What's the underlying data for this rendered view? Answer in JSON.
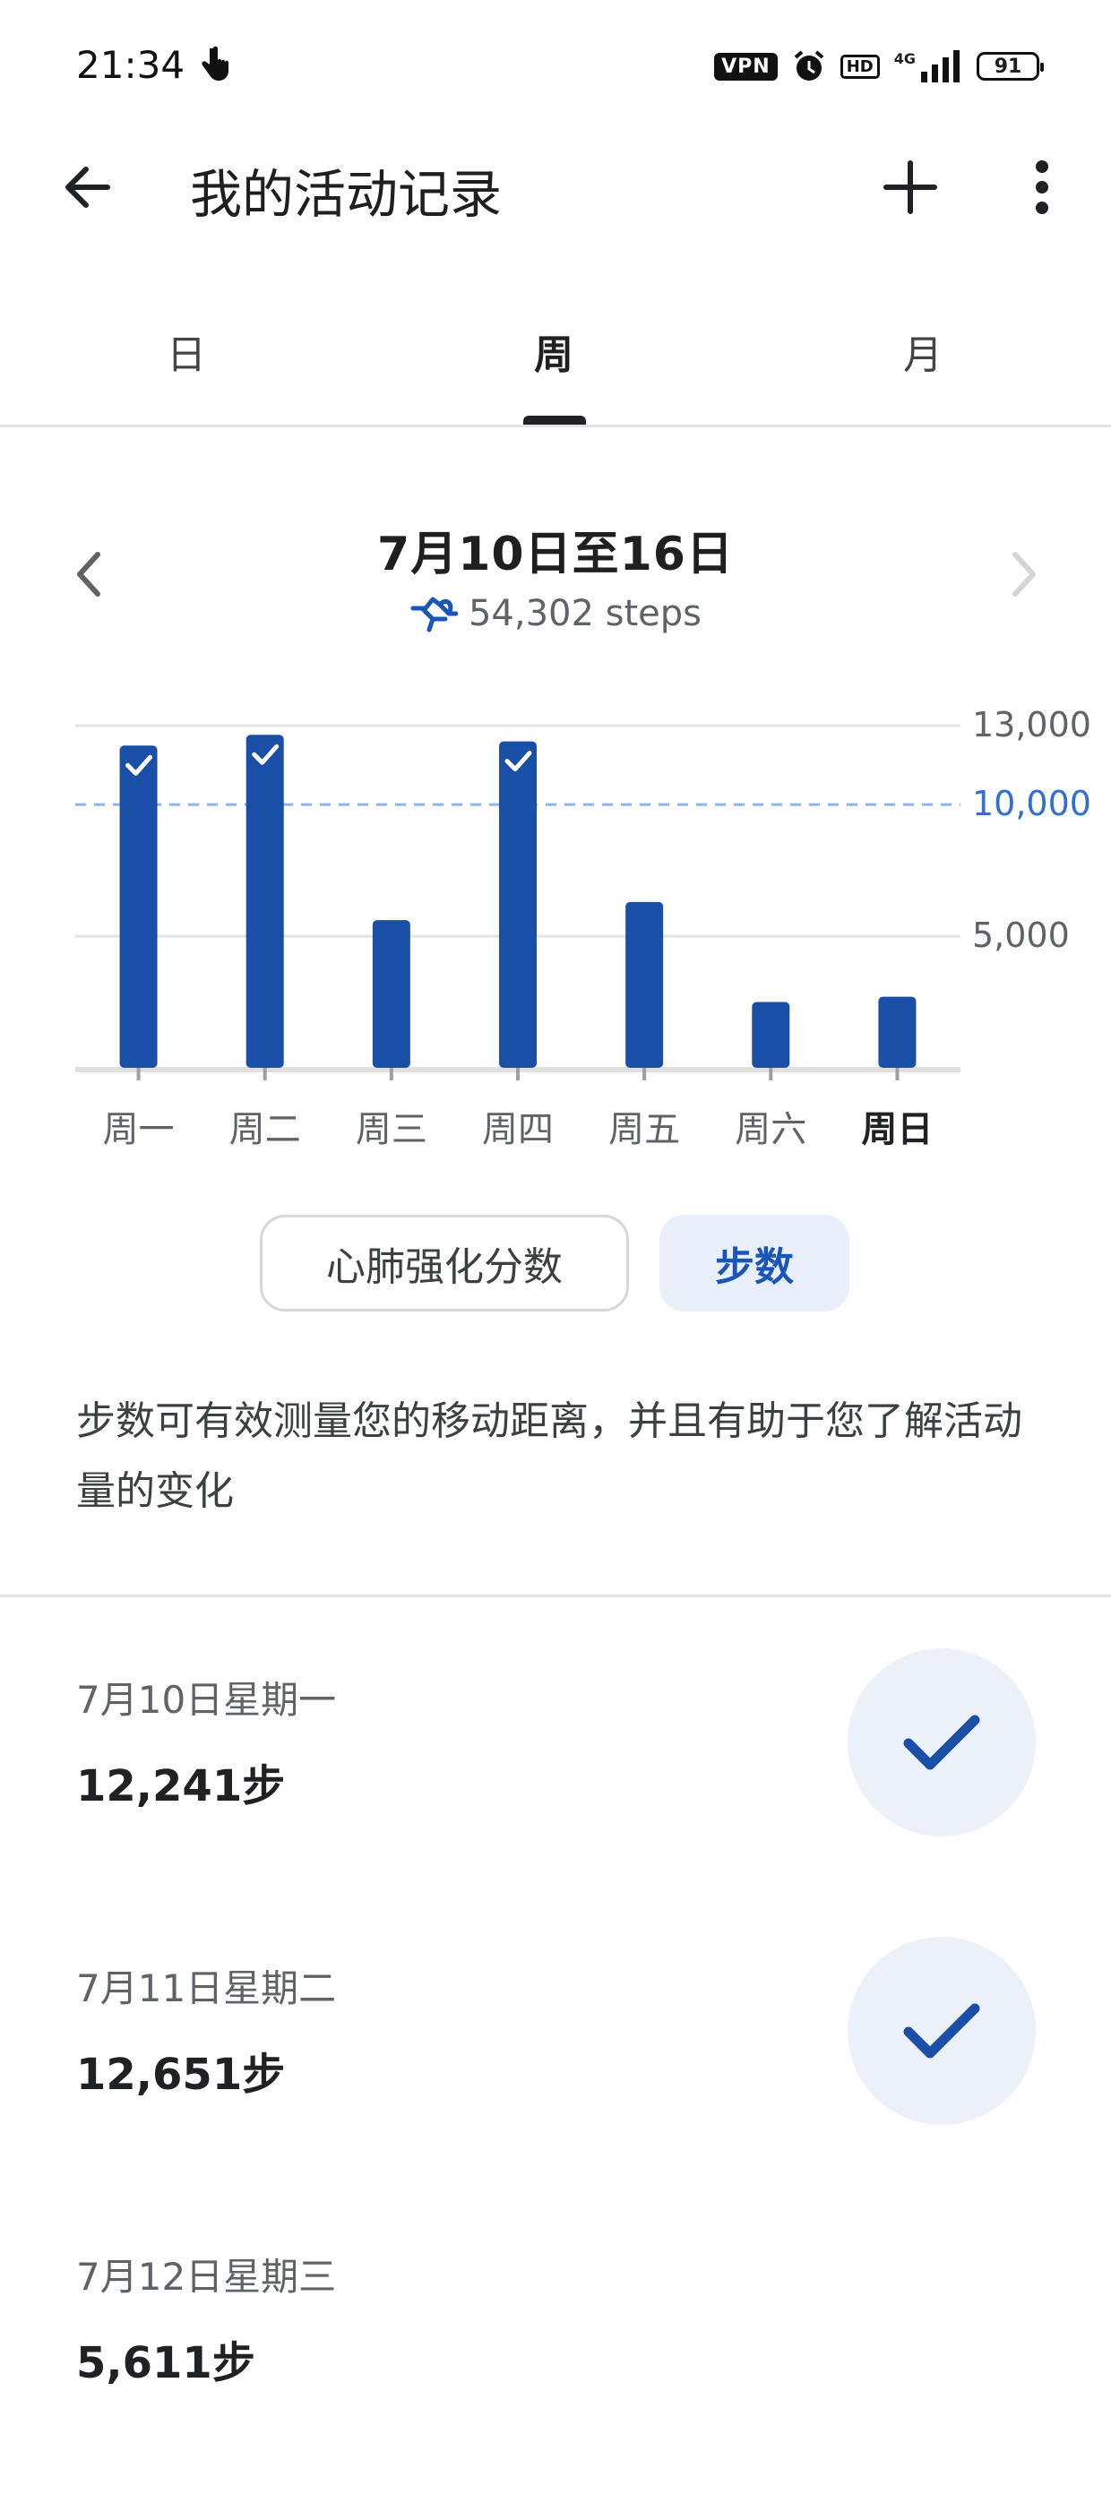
{
  "status_bar": {
    "time": "21:34",
    "vpn": "VPN",
    "hd": "HD",
    "network": "4G",
    "battery": "91"
  },
  "app_bar": {
    "title": "我的活动记录"
  },
  "tabs": [
    {
      "label": "日",
      "active": false
    },
    {
      "label": "周",
      "active": true
    },
    {
      "label": "月",
      "active": false
    }
  ],
  "summary": {
    "range": "7月10日至16日",
    "total": "54,302 steps"
  },
  "chart_data": {
    "type": "bar",
    "categories": [
      "周一",
      "周二",
      "周三",
      "周四",
      "周五",
      "周六",
      "周日"
    ],
    "values": [
      12241,
      12651,
      5611,
      12400,
      6300,
      2500,
      2700
    ],
    "goal_met": [
      true,
      true,
      false,
      true,
      false,
      false,
      false
    ],
    "current_index": 6,
    "y_ticks": [
      "13,000",
      "5,000"
    ],
    "y_tick_values": [
      13000,
      5000
    ],
    "goal_label": "10,000",
    "goal_value": 10000,
    "ylim": [
      0,
      13000
    ],
    "colors": {
      "bar": "#1a4fa8",
      "goal": "#2f6fd6",
      "grid": "#e3e3e3"
    }
  },
  "metric_chips": {
    "cardio": "心肺强化分数",
    "steps": "步数"
  },
  "description": "步数可有效测量您的移动距离，并且有助于您了解活动量的变化",
  "days": [
    {
      "date": "7月10日星期一",
      "steps": "12,241步",
      "goal_met": true
    },
    {
      "date": "7月11日星期二",
      "steps": "12,651步",
      "goal_met": true
    },
    {
      "date": "7月12日星期三",
      "steps": "5,611步",
      "goal_met": false
    }
  ]
}
